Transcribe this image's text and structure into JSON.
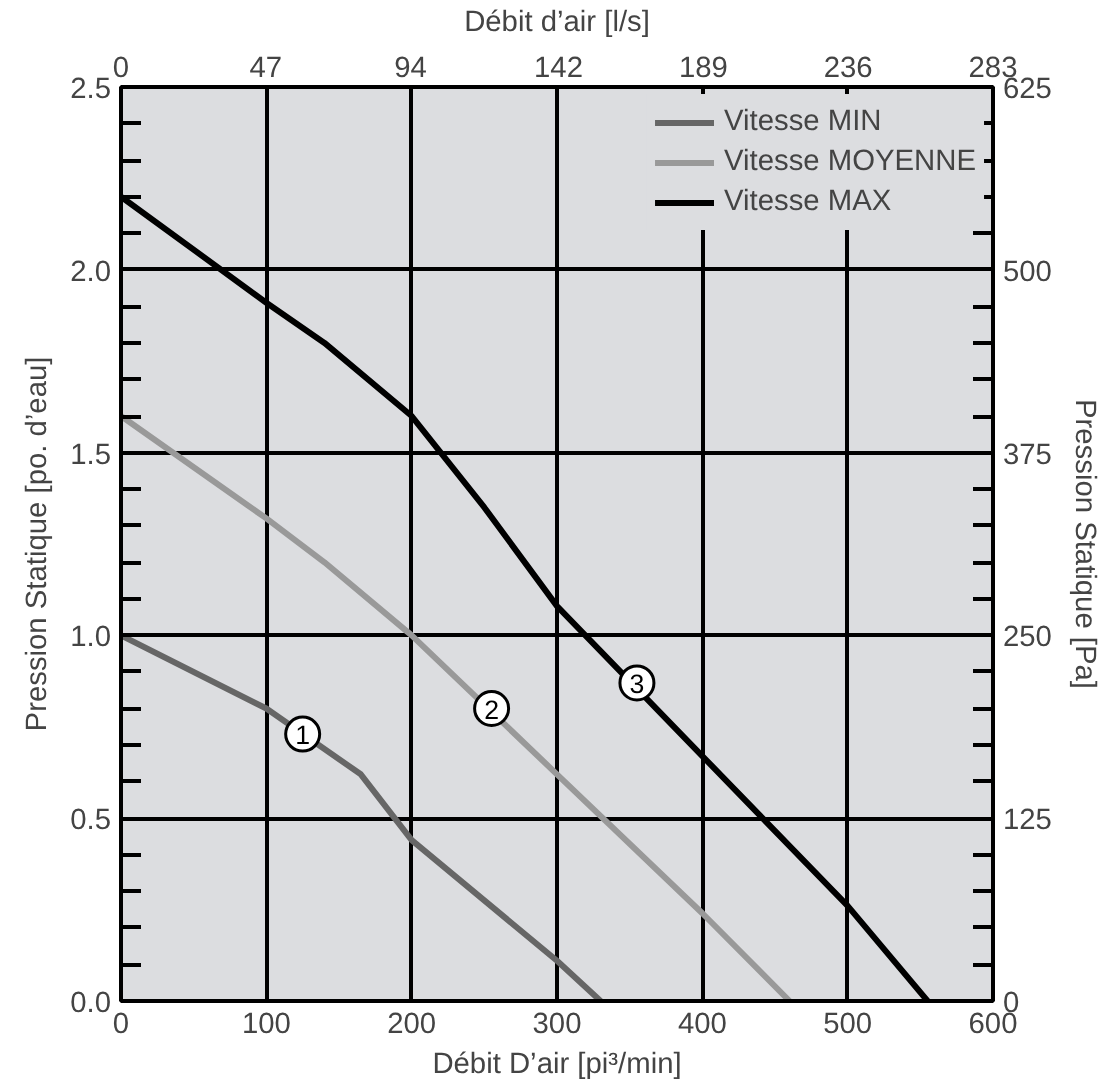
{
  "chart_data": {
    "type": "line",
    "xlabel": "Débit D’air [pi³/min]",
    "ylabel": "Pression Statique [po. d’eau]",
    "y2label": "Pression Statique [Pa]",
    "x2label": "Débit d’air [l/s]",
    "series": [
      {
        "name": "Vitesse MIN",
        "color": "#666666",
        "x": [
          0,
          100,
          165,
          200,
          300,
          330
        ],
        "values": [
          1.0,
          0.8,
          0.62,
          0.44,
          0.11,
          0
        ]
      },
      {
        "name": "Vitesse MOYENNE",
        "color": "#999999",
        "x": [
          0,
          100,
          140,
          200,
          300,
          400,
          460
        ],
        "values": [
          1.6,
          1.32,
          1.2,
          1.0,
          0.62,
          0.24,
          0
        ]
      },
      {
        "name": "Vitesse MAX",
        "color": "#000000",
        "x": [
          0,
          100,
          140,
          200,
          250,
          300,
          400,
          500,
          555
        ],
        "values": [
          2.2,
          1.91,
          1.8,
          1.6,
          1.35,
          1.08,
          0.67,
          0.26,
          0
        ]
      }
    ],
    "annotations": [
      {
        "text": "1",
        "x": 125,
        "y": 0.73
      },
      {
        "text": "2",
        "x": 255,
        "y": 0.8
      },
      {
        "text": "3",
        "x": 355,
        "y": 0.87
      }
    ],
    "xlim": [
      0,
      600
    ],
    "xticks": [
      0,
      100,
      200,
      300,
      400,
      500,
      600
    ],
    "ylim": [
      0,
      2.5
    ],
    "yticks": [
      {
        "value": 0,
        "label": "0.0"
      },
      {
        "value": 0.5,
        "label": "0.5"
      },
      {
        "value": 1,
        "label": "1.0"
      },
      {
        "value": 1.5,
        "label": "1.5"
      },
      {
        "value": 2,
        "label": "2.0"
      },
      {
        "value": 2.5,
        "label": "2.5"
      }
    ],
    "y2lim": [
      0,
      625
    ],
    "y2ticks": [
      0,
      125,
      250,
      375,
      500,
      625
    ],
    "x2lim": [
      0,
      283
    ],
    "x2ticks": [
      0,
      47,
      94,
      142,
      189,
      236,
      283
    ],
    "grid": true,
    "legend": "top right",
    "marker": "none",
    "line_style": "solid"
  }
}
